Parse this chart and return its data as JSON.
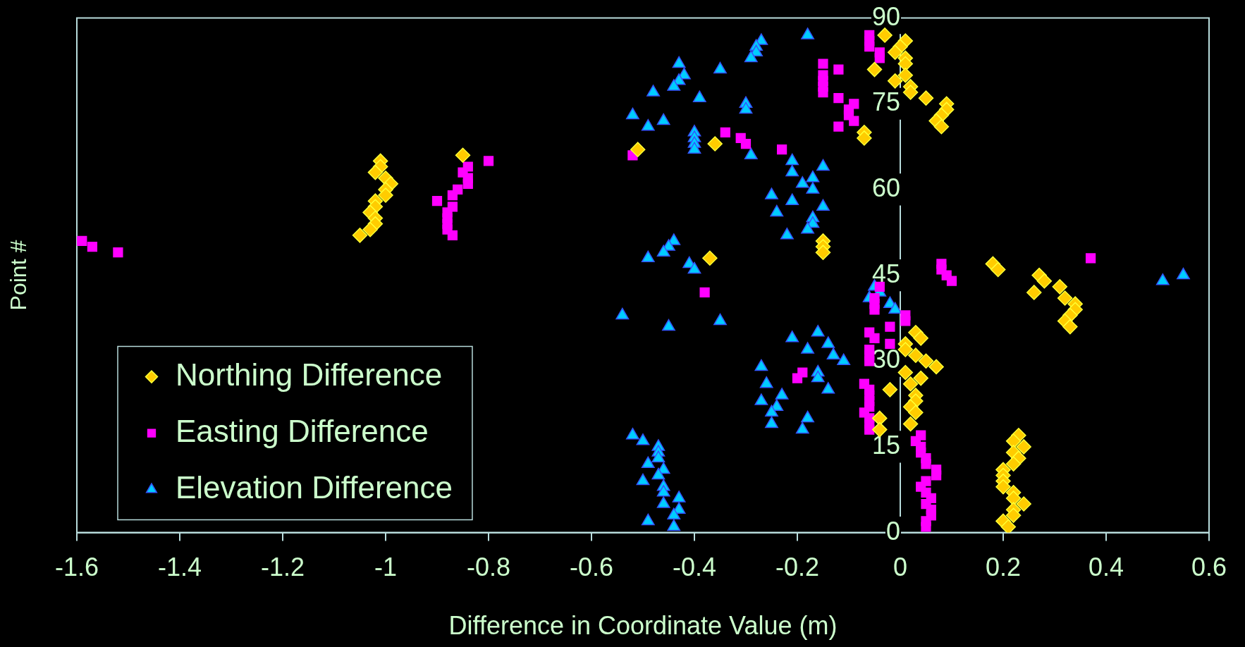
{
  "chart_data": {
    "type": "scatter",
    "xlabel": "Difference in Coordinate Value (m)",
    "ylabel": "Point #",
    "xlim": [
      -1.6,
      0.6
    ],
    "xticks": [
      -1.6,
      -1.4,
      -1.2,
      -1,
      -0.8,
      -0.6,
      -0.4,
      -0.2,
      0,
      0.2,
      0.4,
      0.6
    ],
    "ylim": [
      0,
      90
    ],
    "yticks": [
      0,
      15,
      30,
      45,
      60,
      75,
      90
    ],
    "legend": "bottom left",
    "series": [
      {
        "name": "Northing Difference",
        "color": "#ffcc00",
        "marker": "diamond",
        "x": [
          -0.03,
          0.01,
          0.0,
          -0.01,
          0.01,
          0.01,
          -0.05,
          0.01,
          -0.01,
          0.02,
          0.02,
          0.05,
          0.09,
          0.09,
          0.08,
          0.07,
          0.08,
          -0.07,
          -0.07,
          -0.36,
          -0.51,
          -0.85,
          -1.01,
          -1.01,
          -1.02,
          -1.0,
          -0.99,
          -1.0,
          -1.0,
          -1.02,
          -1.02,
          -1.03,
          -1.02,
          -1.02,
          -1.03,
          -1.05,
          -0.15,
          -0.15,
          -0.15,
          -0.37,
          0.18,
          0.19,
          0.27,
          0.28,
          0.31,
          0.26,
          0.32,
          0.34,
          0.34,
          0.33,
          0.32,
          0.33,
          0.03,
          0.04,
          0.01,
          0.01,
          0.03,
          0.05,
          0.07,
          0.01,
          0.04,
          0.02,
          -0.02,
          0.03,
          0.03,
          0.02,
          0.03,
          -0.04,
          0.02,
          -0.04,
          0.23,
          0.22,
          0.24,
          0.22,
          0.23,
          0.22,
          0.2,
          0.2,
          0.2,
          0.2,
          0.22,
          0.22,
          0.24,
          0.22,
          0.22,
          0.2,
          0.21
        ],
        "values": [
          87,
          86,
          85,
          84,
          83,
          82,
          81,
          80,
          79,
          78,
          77,
          76,
          75,
          74,
          73,
          72,
          71,
          70,
          69,
          68,
          67,
          66,
          65,
          64,
          63,
          62,
          61,
          60,
          59,
          58,
          57,
          56,
          55,
          54,
          53,
          52,
          51,
          50,
          49,
          48,
          47,
          46,
          45,
          44,
          43,
          42,
          41,
          40,
          39,
          38,
          37,
          36,
          35,
          34,
          33,
          32,
          31,
          30,
          29,
          28,
          27,
          26,
          25,
          24,
          23,
          22,
          21,
          20,
          19,
          18,
          17,
          16,
          15,
          14,
          13,
          12,
          11,
          10,
          9,
          8,
          7,
          6,
          5,
          4,
          3,
          2,
          1
        ]
      },
      {
        "name": "Easting Difference",
        "color": "#ff00ff",
        "marker": "square",
        "x": [
          -0.06,
          -0.06,
          -0.06,
          -0.04,
          -0.04,
          -0.15,
          -0.12,
          -0.15,
          -0.15,
          -0.15,
          -0.15,
          -0.12,
          -0.09,
          -0.1,
          -0.1,
          -0.09,
          -0.12,
          -0.34,
          -0.31,
          -0.3,
          -0.23,
          -0.52,
          -0.8,
          -0.84,
          -0.85,
          -0.84,
          -0.84,
          -0.86,
          -0.87,
          -0.9,
          -0.87,
          -0.88,
          -0.88,
          -0.88,
          -0.88,
          -0.87,
          -1.59,
          -1.57,
          -1.52,
          0.37,
          0.08,
          0.08,
          0.09,
          0.1,
          -0.04,
          -0.38,
          -0.05,
          -0.05,
          -0.05,
          0.01,
          0.01,
          -0.02,
          -0.06,
          -0.05,
          -0.02,
          -0.06,
          -0.06,
          -0.06,
          -0.19,
          -0.2,
          -0.07,
          -0.06,
          -0.06,
          -0.06,
          -0.06,
          -0.07,
          -0.06,
          -0.06,
          -0.06,
          0.04,
          0.03,
          0.04,
          0.04,
          0.05,
          0.05,
          0.07,
          0.07,
          0.05,
          0.04,
          0.05,
          0.06,
          0.05,
          0.06,
          0.06,
          0.05,
          0.05
        ],
        "values": [
          87,
          86,
          85,
          84,
          83,
          82,
          81,
          80,
          79,
          78,
          77,
          76,
          75,
          74,
          73,
          72,
          71,
          70,
          69,
          68,
          67,
          66,
          65,
          64,
          63,
          62,
          61,
          60,
          59,
          58,
          57,
          56,
          55,
          54,
          53,
          52,
          51,
          50,
          49,
          48,
          47,
          46,
          45,
          44,
          43,
          42,
          41,
          40,
          39,
          38,
          37,
          36,
          35,
          34,
          33,
          32,
          31,
          30,
          28,
          27,
          26,
          25,
          24,
          23,
          22,
          21,
          20,
          19,
          18,
          17,
          16,
          15,
          14,
          13,
          12,
          11,
          10,
          9,
          8,
          7,
          6,
          5,
          4,
          3,
          2,
          1
        ]
      },
      {
        "name": "Elevation Difference",
        "color": "#00ccff",
        "marker": "triangle",
        "x": [
          -0.18,
          -0.27,
          -0.28,
          -0.28,
          -0.29,
          -0.43,
          -0.35,
          -0.42,
          -0.43,
          -0.44,
          -0.48,
          -0.39,
          -0.3,
          -0.3,
          -0.52,
          -0.46,
          -0.49,
          -0.4,
          -0.4,
          -0.4,
          -0.4,
          -0.29,
          -0.21,
          -0.15,
          -0.21,
          -0.17,
          -0.19,
          -0.17,
          -0.25,
          -0.21,
          -0.15,
          -0.24,
          -0.17,
          -0.17,
          -0.18,
          -0.22,
          -0.44,
          -0.45,
          -0.46,
          -0.49,
          -0.41,
          -0.4,
          0.55,
          0.51,
          -0.05,
          -0.04,
          -0.06,
          -0.02,
          -0.01,
          -0.54,
          -0.35,
          -0.45,
          -0.16,
          -0.21,
          -0.14,
          -0.18,
          -0.13,
          -0.11,
          -0.27,
          -0.16,
          -0.16,
          -0.26,
          -0.14,
          -0.23,
          -0.27,
          -0.24,
          -0.25,
          -0.18,
          -0.25,
          -0.19,
          -0.52,
          -0.5,
          -0.47,
          -0.47,
          -0.47,
          -0.49,
          -0.46,
          -0.47,
          -0.5,
          -0.46,
          -0.46,
          -0.43,
          -0.46,
          -0.43,
          -0.44,
          -0.49,
          -0.44
        ],
        "values": [
          87,
          86,
          85,
          84,
          83,
          82,
          81,
          80,
          79,
          78,
          77,
          76,
          75,
          74,
          73,
          72,
          71,
          70,
          69,
          68,
          67,
          66,
          65,
          64,
          63,
          62,
          61,
          60,
          59,
          58,
          57,
          56,
          55,
          54,
          53,
          52,
          51,
          50,
          49,
          48,
          47,
          46,
          45,
          44,
          43,
          42,
          41,
          40,
          39,
          38,
          37,
          36,
          35,
          34,
          33,
          32,
          31,
          30,
          29,
          28,
          27,
          26,
          25,
          24,
          23,
          22,
          21,
          20,
          19,
          18,
          17,
          16,
          15,
          14,
          13,
          12,
          11,
          10,
          9,
          8,
          7,
          6,
          5,
          4,
          3,
          2,
          1
        ]
      }
    ]
  }
}
